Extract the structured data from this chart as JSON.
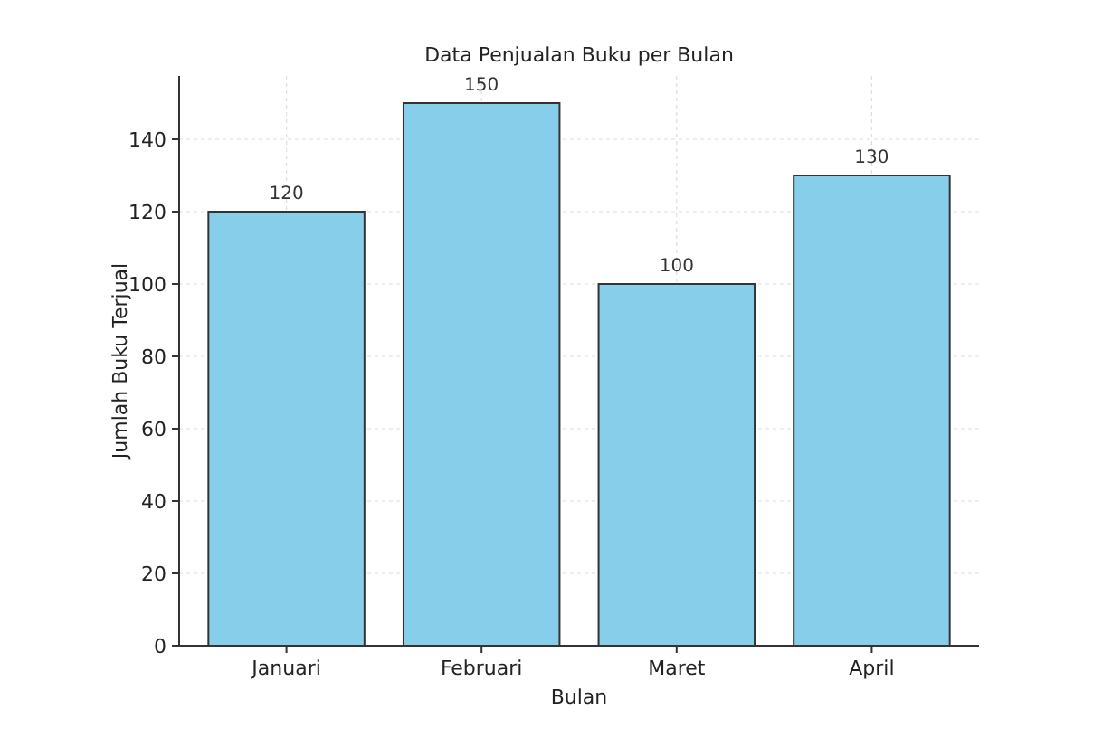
{
  "chart_data": {
    "type": "bar",
    "title": "Data Penjualan Buku per Bulan",
    "xlabel": "Bulan",
    "ylabel": "Jumlah Buku Terjual",
    "categories": [
      "Januari",
      "Februari",
      "Maret",
      "April"
    ],
    "values": [
      120,
      150,
      100,
      130
    ],
    "color": "#87ceeb",
    "ylim": [
      0,
      157.5
    ],
    "yticks": [
      0,
      20,
      40,
      60,
      80,
      100,
      120,
      140
    ],
    "grid": true,
    "data_labels": true
  }
}
